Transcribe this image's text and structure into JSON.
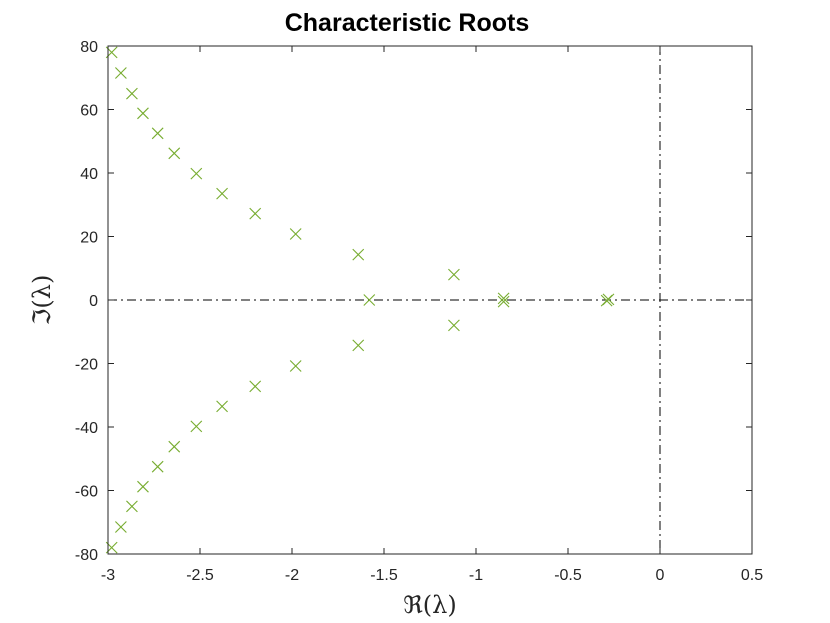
{
  "chart_data": {
    "type": "scatter",
    "title": "Characteristic Roots",
    "xlabel": "ℜ(λ)",
    "ylabel": "ℑ(λ)",
    "xlim": [
      -3,
      0.5
    ],
    "ylim": [
      -80,
      80
    ],
    "xticks": [
      -3,
      -2.5,
      -2,
      -1.5,
      -1,
      -0.5,
      0,
      0.5
    ],
    "xtick_labels": [
      "-3",
      "-2.5",
      "-2",
      "-1.5",
      "-1",
      "-0.5",
      "0",
      "0.5"
    ],
    "yticks": [
      -80,
      -60,
      -40,
      -20,
      0,
      20,
      40,
      60,
      80
    ],
    "ytick_labels": [
      "-80",
      "-60",
      "-40",
      "-20",
      "0",
      "20",
      "40",
      "60",
      "80"
    ],
    "grid": false,
    "marker": "x",
    "marker_color": "#77ac30",
    "reference_lines": [
      {
        "orientation": "horizontal",
        "value": 0,
        "style": "dash-dot"
      },
      {
        "orientation": "vertical",
        "value": 0,
        "style": "dash-dot"
      }
    ],
    "points": [
      {
        "x": -2.98,
        "y": 78
      },
      {
        "x": -2.93,
        "y": 71.5
      },
      {
        "x": -2.87,
        "y": 65
      },
      {
        "x": -2.81,
        "y": 58.8
      },
      {
        "x": -2.73,
        "y": 52.5
      },
      {
        "x": -2.64,
        "y": 46.2
      },
      {
        "x": -2.52,
        "y": 39.8
      },
      {
        "x": -2.38,
        "y": 33.5
      },
      {
        "x": -2.2,
        "y": 27.2
      },
      {
        "x": -1.98,
        "y": 20.8
      },
      {
        "x": -1.64,
        "y": 14.3
      },
      {
        "x": -1.12,
        "y": 8.0
      },
      {
        "x": -1.58,
        "y": 0
      },
      {
        "x": -0.85,
        "y": 0.5
      },
      {
        "x": -0.85,
        "y": -0.5
      },
      {
        "x": -0.28,
        "y": 0.2
      },
      {
        "x": -0.29,
        "y": -0.2
      },
      {
        "x": -1.12,
        "y": -8.0
      },
      {
        "x": -1.64,
        "y": -14.3
      },
      {
        "x": -1.98,
        "y": -20.8
      },
      {
        "x": -2.2,
        "y": -27.2
      },
      {
        "x": -2.38,
        "y": -33.5
      },
      {
        "x": -2.52,
        "y": -39.8
      },
      {
        "x": -2.64,
        "y": -46.2
      },
      {
        "x": -2.73,
        "y": -52.5
      },
      {
        "x": -2.81,
        "y": -58.8
      },
      {
        "x": -2.87,
        "y": -65
      },
      {
        "x": -2.93,
        "y": -71.5
      },
      {
        "x": -2.98,
        "y": -78
      }
    ]
  }
}
